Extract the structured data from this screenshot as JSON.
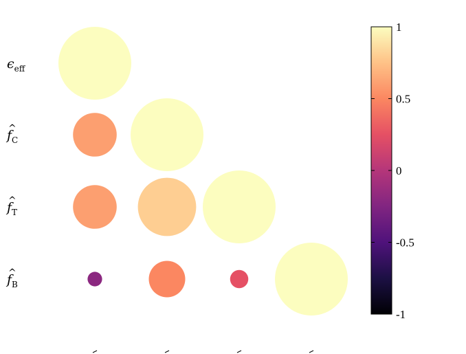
{
  "chart_data": {
    "type": "heatmap",
    "subtype": "correlation-circles-lower-triangle",
    "rows": [
      {
        "main": "ϵ",
        "sub": "eff",
        "hat": false
      },
      {
        "main": "f",
        "sub": "C",
        "hat": true
      },
      {
        "main": "f",
        "sub": "T",
        "hat": true
      },
      {
        "main": "f",
        "sub": "B",
        "hat": true
      }
    ],
    "matrix": [
      [
        1.0,
        null,
        null,
        null
      ],
      [
        0.6,
        1.0,
        null,
        null
      ],
      [
        0.6,
        0.8,
        1.0,
        null
      ],
      [
        -0.2,
        0.5,
        0.25,
        1.0
      ]
    ],
    "colorbar": {
      "range": [
        -1,
        1
      ],
      "ticks": [
        1,
        0.5,
        0,
        -0.5,
        -1
      ],
      "tick_labels": [
        "1",
        "0.5",
        "0",
        "-0.5",
        "-1"
      ],
      "colormap": "magma"
    }
  }
}
